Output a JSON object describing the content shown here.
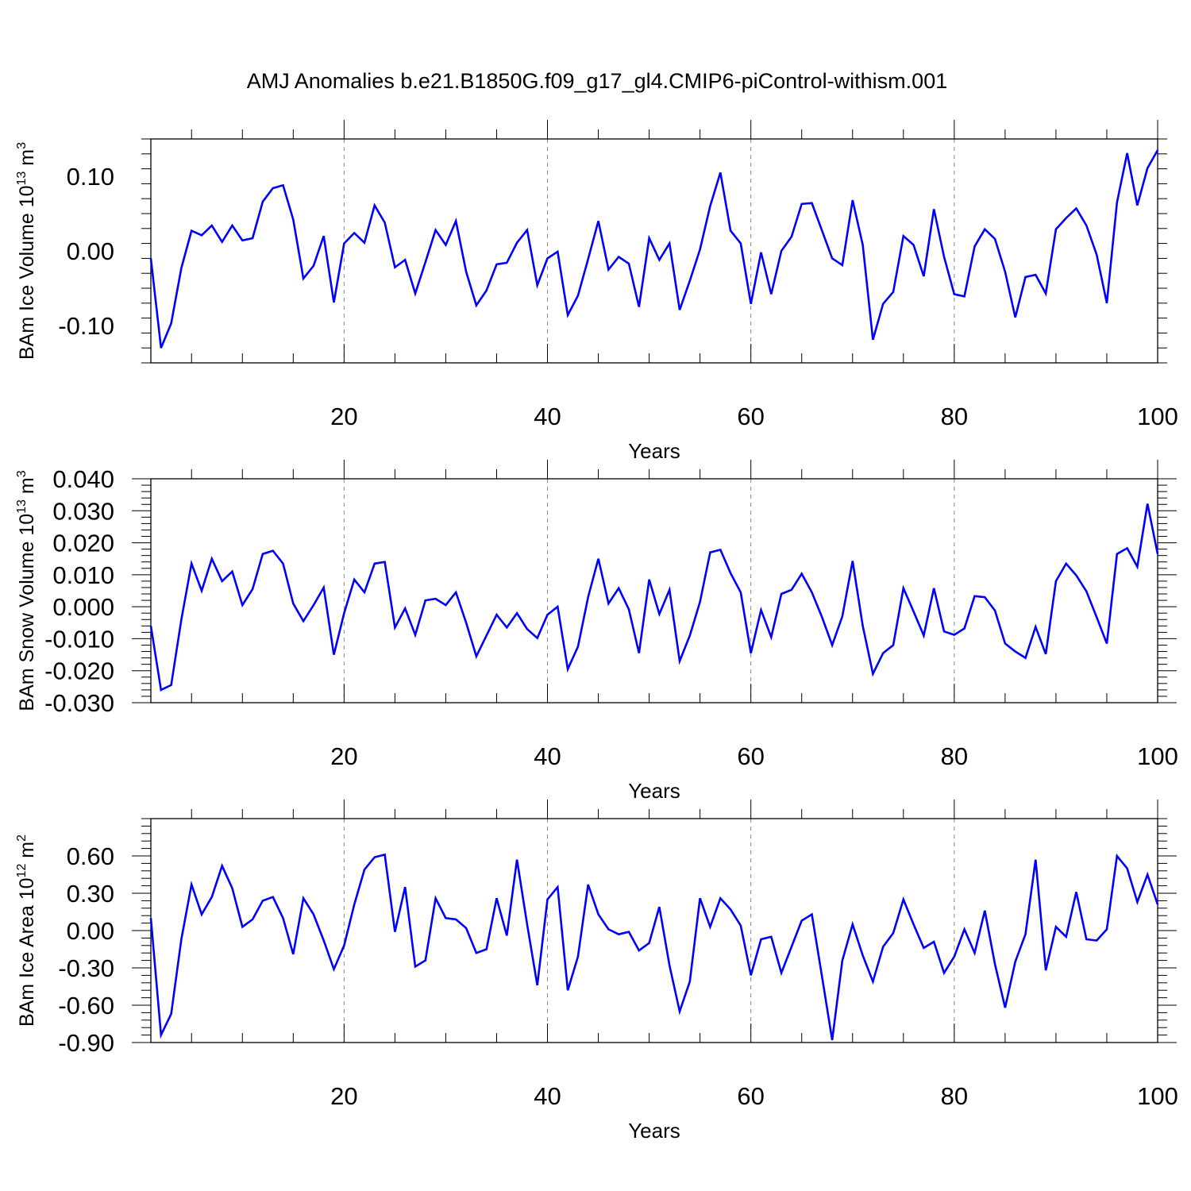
{
  "title": "AMJ Anomalies b.e21.B1850G.f09_g17_gl4.CMIP6-piControl-withism.001",
  "chart_data": [
    {
      "type": "line",
      "ylabel": "BAm Ice Volume 10",
      "ylabel_exp": "13",
      "ylabel_unit": " m",
      "ylabel_unit_exp": "3",
      "xlabel": "Years",
      "xlim": [
        1,
        100
      ],
      "ylim": [
        -0.15,
        0.15
      ],
      "xticks": [
        20,
        40,
        60,
        80,
        100
      ],
      "xtick_labels": [
        "20",
        "40",
        "60",
        "80",
        "100"
      ],
      "yticks": [
        -0.1,
        0.0,
        0.1
      ],
      "ytick_labels": [
        "-0.10",
        "0.00",
        "0.10"
      ],
      "color": "#0000ff",
      "values": [
        -0.01,
        -0.13,
        -0.097,
        -0.023,
        0.027,
        0.021,
        0.034,
        0.012,
        0.034,
        0.014,
        0.017,
        0.066,
        0.084,
        0.088,
        0.042,
        -0.037,
        -0.02,
        0.02,
        -0.069,
        0.01,
        0.024,
        0.011,
        0.061,
        0.038,
        -0.022,
        -0.012,
        -0.057,
        -0.015,
        0.028,
        0.008,
        0.04,
        -0.028,
        -0.073,
        -0.053,
        -0.018,
        -0.016,
        0.011,
        0.028,
        -0.046,
        -0.01,
        -0.001,
        -0.086,
        -0.06,
        -0.011,
        0.04,
        -0.025,
        -0.008,
        -0.017,
        -0.075,
        0.017,
        -0.012,
        0.01,
        -0.079,
        -0.04,
        0.002,
        0.06,
        0.105,
        0.027,
        0.01,
        -0.071,
        -0.002,
        -0.058,
        0.0,
        0.019,
        0.063,
        0.064,
        0.027,
        -0.01,
        -0.019,
        0.068,
        0.008,
        -0.119,
        -0.071,
        -0.055,
        0.02,
        0.008,
        -0.034,
        0.056,
        -0.008,
        -0.058,
        -0.061,
        0.006,
        0.029,
        0.016,
        -0.028,
        -0.089,
        -0.035,
        -0.032,
        -0.057,
        0.029,
        0.044,
        0.057,
        0.034,
        -0.005,
        -0.07,
        0.065,
        0.131,
        0.061,
        0.111,
        0.135
      ]
    },
    {
      "type": "line",
      "ylabel": "BAm Snow Volume 10",
      "ylabel_exp": "13",
      "ylabel_unit": " m",
      "ylabel_unit_exp": "3",
      "xlabel": "Years",
      "xlim": [
        1,
        100
      ],
      "ylim": [
        -0.03,
        0.04
      ],
      "xticks": [
        20,
        40,
        60,
        80,
        100
      ],
      "xtick_labels": [
        "20",
        "40",
        "60",
        "80",
        "100"
      ],
      "yticks": [
        -0.03,
        -0.02,
        -0.01,
        0.0,
        0.01,
        0.02,
        0.03,
        0.04
      ],
      "ytick_labels": [
        "-0.030",
        "-0.020",
        "-0.010",
        "0.000",
        "0.010",
        "0.020",
        "0.030",
        "0.040"
      ],
      "color": "#0000ff",
      "values": [
        -0.006,
        -0.026,
        -0.0245,
        -0.004,
        0.0135,
        0.005,
        0.015,
        0.008,
        0.011,
        0.0005,
        0.0055,
        0.0165,
        0.0175,
        0.0135,
        0.001,
        -0.0045,
        0.0005,
        0.006,
        -0.015,
        -0.002,
        0.0085,
        0.0045,
        0.0135,
        0.014,
        -0.0065,
        -0.0005,
        -0.0088,
        0.002,
        0.0025,
        0.0005,
        0.0045,
        -0.005,
        -0.0155,
        -0.009,
        -0.0025,
        -0.0065,
        -0.002,
        -0.007,
        -0.0098,
        -0.0025,
        0.0,
        -0.0195,
        -0.0125,
        0.003,
        0.015,
        0.001,
        0.0058,
        -0.0008,
        -0.0145,
        0.0085,
        -0.0023,
        0.0053,
        -0.017,
        -0.009,
        0.0015,
        0.017,
        0.0178,
        0.0105,
        0.0045,
        -0.0145,
        -0.001,
        -0.0095,
        0.004,
        0.0053,
        0.0103,
        0.0045,
        -0.0033,
        -0.012,
        -0.003,
        0.0143,
        -0.006,
        -0.021,
        -0.0145,
        -0.012,
        0.0058,
        -0.0015,
        -0.009,
        0.0058,
        -0.0077,
        -0.0088,
        -0.0068,
        0.0033,
        0.003,
        -0.0012,
        -0.0115,
        -0.014,
        -0.016,
        -0.0063,
        -0.0148,
        0.008,
        0.0135,
        0.0098,
        0.0048,
        -0.0033,
        -0.0115,
        0.0165,
        0.0183,
        0.0125,
        0.0322,
        0.0165
      ]
    },
    {
      "type": "line",
      "ylabel": "BAm Ice Area 10",
      "ylabel_exp": "12",
      "ylabel_unit": " m",
      "ylabel_unit_exp": "2",
      "xlabel": "Years",
      "xlim": [
        1,
        100
      ],
      "ylim": [
        -0.9,
        0.9
      ],
      "xticks": [
        20,
        40,
        60,
        80,
        100
      ],
      "xtick_labels": [
        "20",
        "40",
        "60",
        "80",
        "100"
      ],
      "yticks": [
        -0.9,
        -0.6,
        -0.3,
        0.0,
        0.3,
        0.6
      ],
      "ytick_labels": [
        "-0.90",
        "-0.60",
        "-0.30",
        "0.00",
        "0.30",
        "0.60"
      ],
      "color": "#0000ff",
      "values": [
        0.1,
        -0.84,
        -0.67,
        -0.07,
        0.37,
        0.13,
        0.27,
        0.52,
        0.34,
        0.03,
        0.09,
        0.24,
        0.27,
        0.1,
        -0.19,
        0.26,
        0.13,
        -0.08,
        -0.31,
        -0.12,
        0.21,
        0.49,
        0.59,
        0.61,
        -0.01,
        0.35,
        -0.29,
        -0.24,
        0.26,
        0.1,
        0.09,
        0.02,
        -0.18,
        -0.15,
        0.26,
        -0.04,
        0.57,
        0.05,
        -0.44,
        0.25,
        0.35,
        -0.48,
        -0.21,
        0.37,
        0.13,
        0.01,
        -0.03,
        -0.01,
        -0.16,
        -0.1,
        0.19,
        -0.28,
        -0.65,
        -0.41,
        0.26,
        0.03,
        0.26,
        0.17,
        0.04,
        -0.36,
        -0.07,
        -0.05,
        -0.34,
        -0.13,
        0.08,
        0.13,
        -0.37,
        -0.88,
        -0.24,
        0.05,
        -0.2,
        -0.41,
        -0.13,
        -0.02,
        0.25,
        0.05,
        -0.14,
        -0.09,
        -0.34,
        -0.21,
        0.01,
        -0.18,
        0.16,
        -0.27,
        -0.62,
        -0.25,
        -0.03,
        0.57,
        -0.32,
        0.03,
        -0.05,
        0.31,
        -0.07,
        -0.08,
        0.01,
        0.6,
        0.5,
        0.23,
        0.45,
        0.21
      ]
    }
  ]
}
